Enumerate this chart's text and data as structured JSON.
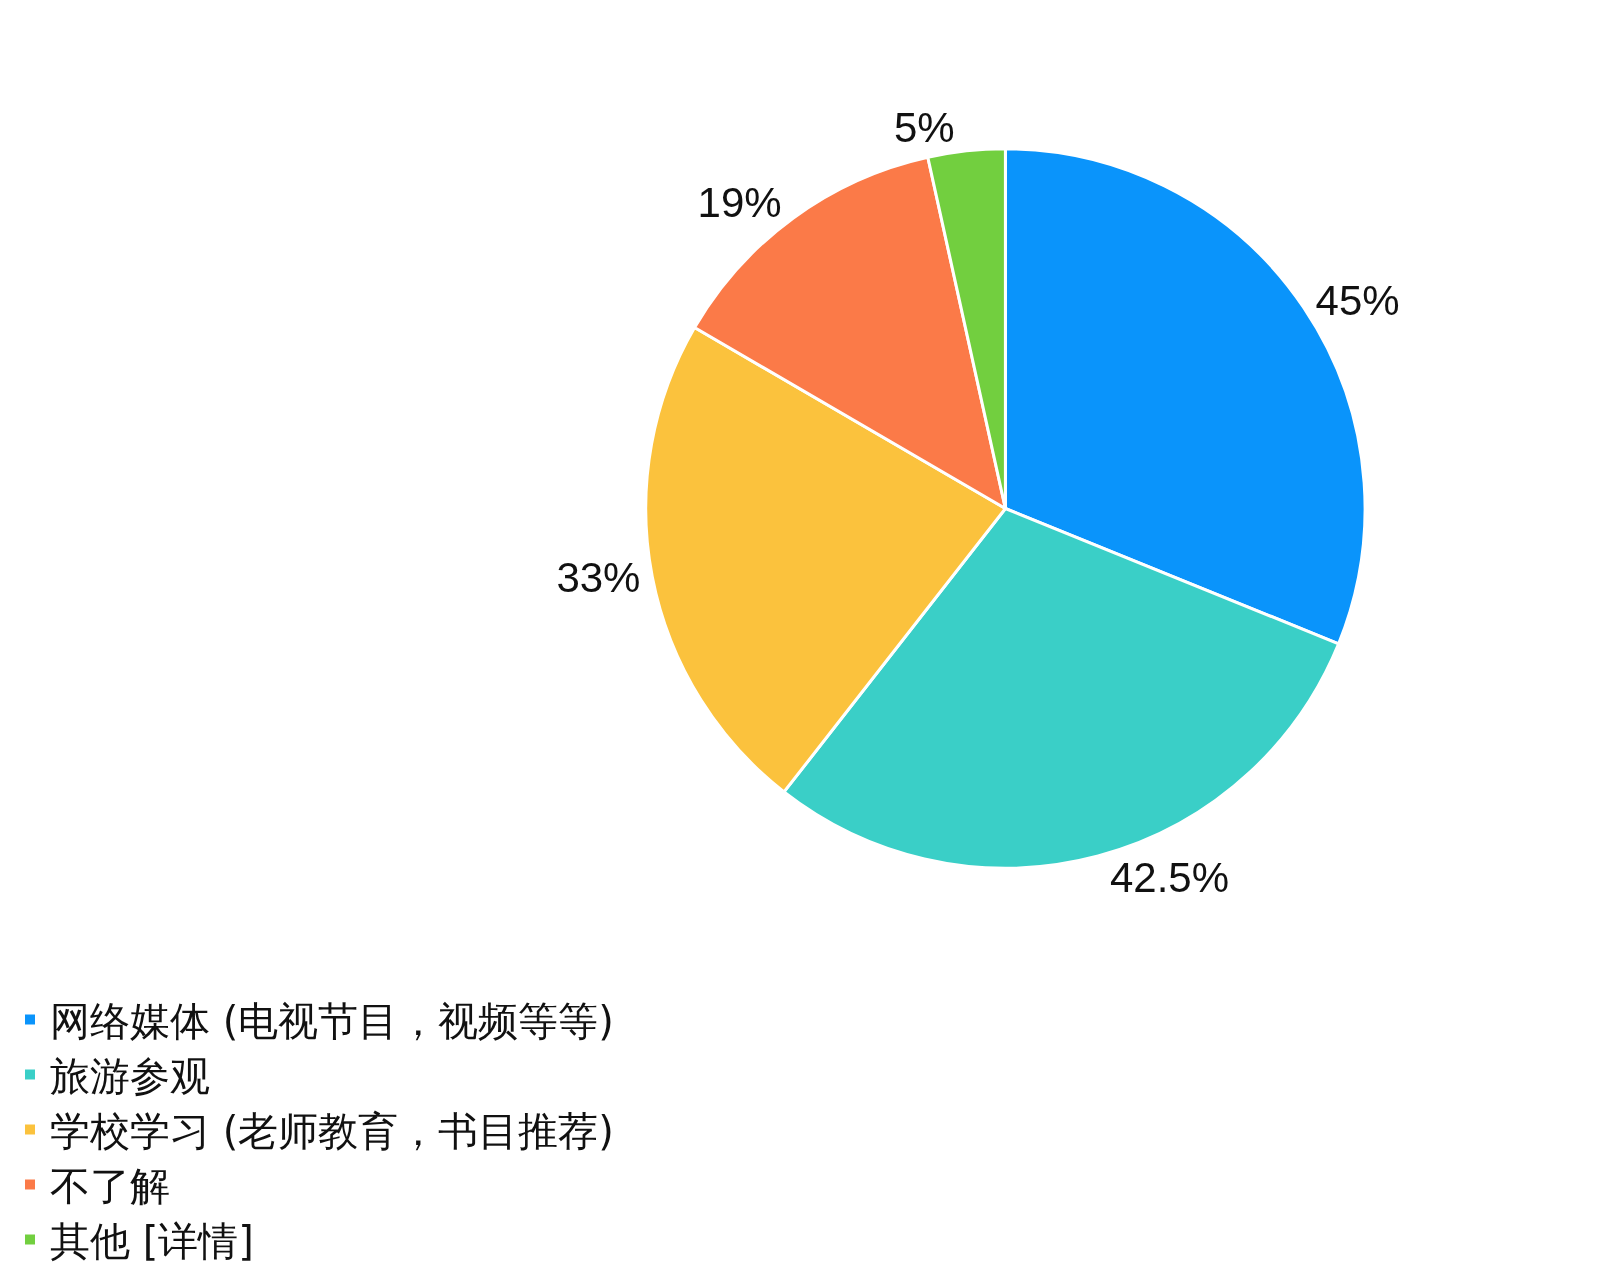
{
  "chart_data": {
    "type": "pie",
    "categories": [
      "网络媒体 (电视节目，视频等等)",
      "旅游参观",
      "学校学习 (老师教育，书目推荐)",
      "不了解",
      "其他 [详情]"
    ],
    "values": [
      45,
      42.5,
      33,
      19,
      5
    ],
    "value_labels": [
      "45%",
      "42.5%",
      "33%",
      "19%",
      "5%"
    ],
    "colors": [
      "#0a94fb",
      "#3acfc7",
      "#fbc23d",
      "#fb7a48",
      "#72cf3f"
    ],
    "legend": "bottom"
  }
}
